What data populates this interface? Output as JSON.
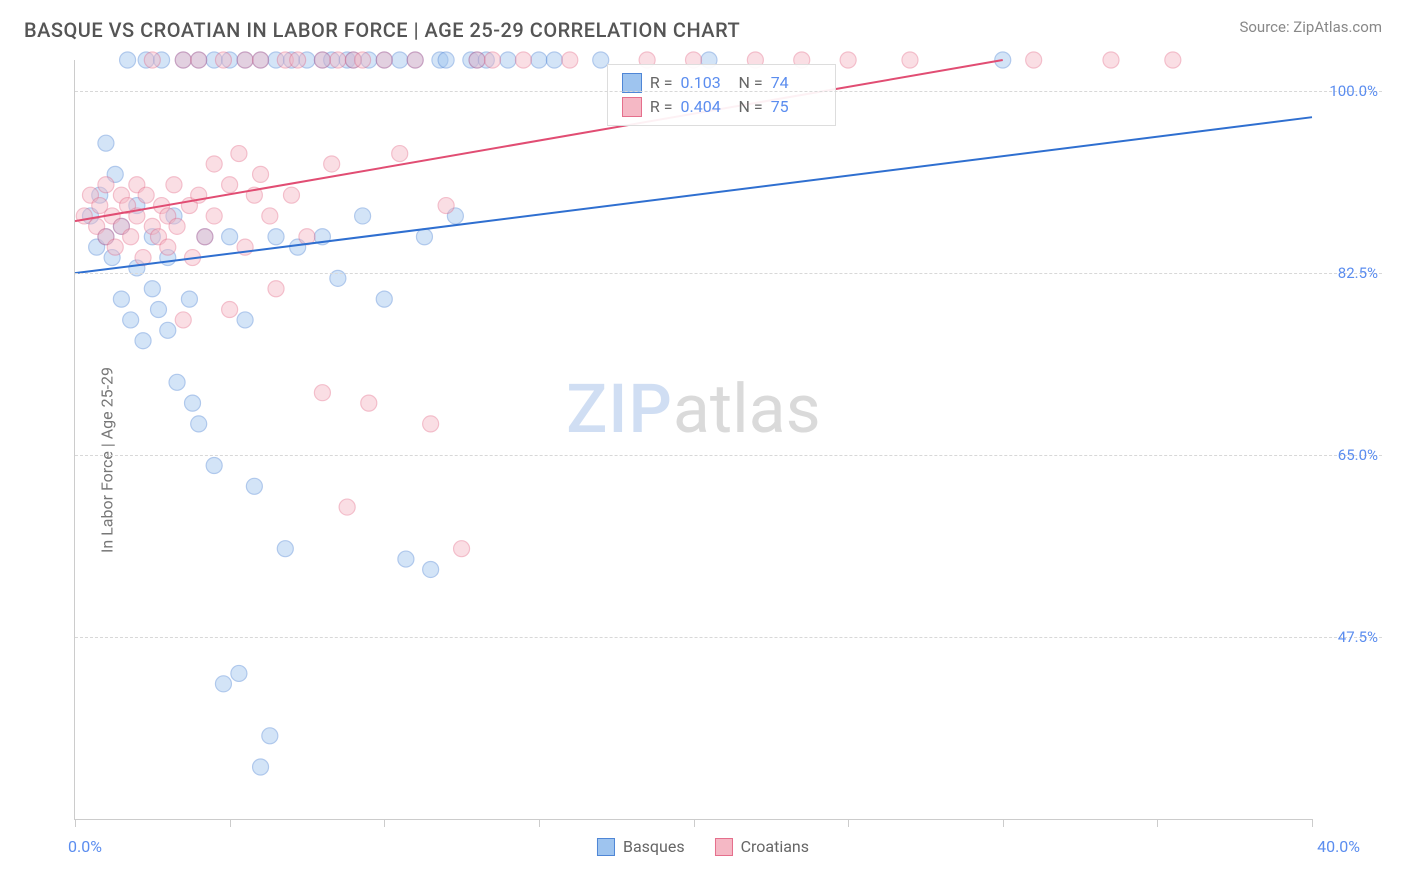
{
  "header": {
    "title": "BASQUE VS CROATIAN IN LABOR FORCE | AGE 25-29 CORRELATION CHART",
    "source": "Source: ZipAtlas.com"
  },
  "chart": {
    "type": "scatter",
    "ylabel": "In Labor Force | Age 25-29",
    "xlim": [
      0,
      40
    ],
    "ylim": [
      30,
      103
    ],
    "x_tick_positions": [
      0,
      5,
      10,
      15,
      20,
      25,
      30,
      35,
      40
    ],
    "y_gridlines": [
      47.5,
      65.0,
      82.5,
      100.0
    ],
    "y_tick_labels": [
      "47.5%",
      "65.0%",
      "82.5%",
      "100.0%"
    ],
    "x_min_label": "0.0%",
    "x_max_label": "40.0%",
    "background_color": "#ffffff",
    "grid_color": "#d8d8d8",
    "axis_color": "#cccccc",
    "text_color": "#666666",
    "value_color": "#5b8def",
    "marker_radius": 8,
    "marker_opacity": 0.45,
    "line_width": 2,
    "stats_box": {
      "left_pct": 43,
      "top_pct": 0.5
    },
    "series": [
      {
        "name": "Basques",
        "color_fill": "#9ec4ef",
        "color_stroke": "#4f86d6",
        "line_color": "#2f6fd0",
        "r_value": "0.103",
        "n_value": "74",
        "trend": {
          "x1": 0,
          "y1": 82.5,
          "x2": 40,
          "y2": 97.5
        },
        "points": [
          [
            0.5,
            88
          ],
          [
            0.7,
            85
          ],
          [
            0.8,
            90
          ],
          [
            1,
            86
          ],
          [
            1,
            95
          ],
          [
            1.2,
            84
          ],
          [
            1.3,
            92
          ],
          [
            1.5,
            80
          ],
          [
            1.5,
            87
          ],
          [
            1.7,
            103
          ],
          [
            1.8,
            78
          ],
          [
            2,
            83
          ],
          [
            2,
            89
          ],
          [
            2.2,
            76
          ],
          [
            2.3,
            103
          ],
          [
            2.5,
            81
          ],
          [
            2.5,
            86
          ],
          [
            2.7,
            79
          ],
          [
            2.8,
            103
          ],
          [
            3,
            77
          ],
          [
            3,
            84
          ],
          [
            3.2,
            88
          ],
          [
            3.3,
            72
          ],
          [
            3.5,
            103
          ],
          [
            3.7,
            80
          ],
          [
            3.8,
            70
          ],
          [
            4,
            68
          ],
          [
            4,
            103
          ],
          [
            4.2,
            86
          ],
          [
            4.5,
            64
          ],
          [
            4.5,
            103
          ],
          [
            4.8,
            43
          ],
          [
            5,
            103
          ],
          [
            5,
            86
          ],
          [
            5.3,
            44
          ],
          [
            5.5,
            78
          ],
          [
            5.5,
            103
          ],
          [
            5.8,
            62
          ],
          [
            6,
            103
          ],
          [
            6,
            35
          ],
          [
            6.3,
            38
          ],
          [
            6.5,
            86
          ],
          [
            6.5,
            103
          ],
          [
            6.8,
            56
          ],
          [
            7,
            103
          ],
          [
            7.2,
            85
          ],
          [
            7.5,
            103
          ],
          [
            8,
            103
          ],
          [
            8,
            86
          ],
          [
            8.3,
            103
          ],
          [
            8.5,
            82
          ],
          [
            8.8,
            103
          ],
          [
            9,
            103
          ],
          [
            9.3,
            88
          ],
          [
            9.5,
            103
          ],
          [
            10,
            103
          ],
          [
            10,
            80
          ],
          [
            10.5,
            103
          ],
          [
            10.7,
            55
          ],
          [
            11,
            103
          ],
          [
            11.3,
            86
          ],
          [
            11.5,
            54
          ],
          [
            11.8,
            103
          ],
          [
            12,
            103
          ],
          [
            12.3,
            88
          ],
          [
            12.8,
            103
          ],
          [
            13,
            103
          ],
          [
            13.3,
            103
          ],
          [
            14,
            103
          ],
          [
            15,
            103
          ],
          [
            15.5,
            103
          ],
          [
            17,
            103
          ],
          [
            20.5,
            103
          ],
          [
            30,
            103
          ]
        ]
      },
      {
        "name": "Croatians",
        "color_fill": "#f5b8c5",
        "color_stroke": "#e56f8c",
        "line_color": "#e14d73",
        "r_value": "0.404",
        "n_value": "75",
        "trend": {
          "x1": 0,
          "y1": 87.5,
          "x2": 30,
          "y2": 103
        },
        "points": [
          [
            0.3,
            88
          ],
          [
            0.5,
            90
          ],
          [
            0.7,
            87
          ],
          [
            0.8,
            89
          ],
          [
            1,
            86
          ],
          [
            1,
            91
          ],
          [
            1.2,
            88
          ],
          [
            1.3,
            85
          ],
          [
            1.5,
            90
          ],
          [
            1.5,
            87
          ],
          [
            1.7,
            89
          ],
          [
            1.8,
            86
          ],
          [
            2,
            88
          ],
          [
            2,
            91
          ],
          [
            2.2,
            84
          ],
          [
            2.3,
            90
          ],
          [
            2.5,
            87
          ],
          [
            2.5,
            103
          ],
          [
            2.7,
            86
          ],
          [
            2.8,
            89
          ],
          [
            3,
            88
          ],
          [
            3,
            85
          ],
          [
            3.2,
            91
          ],
          [
            3.3,
            87
          ],
          [
            3.5,
            78
          ],
          [
            3.5,
            103
          ],
          [
            3.7,
            89
          ],
          [
            3.8,
            84
          ],
          [
            4,
            90
          ],
          [
            4,
            103
          ],
          [
            4.2,
            86
          ],
          [
            4.5,
            93
          ],
          [
            4.5,
            88
          ],
          [
            4.8,
            103
          ],
          [
            5,
            91
          ],
          [
            5,
            79
          ],
          [
            5.3,
            94
          ],
          [
            5.5,
            103
          ],
          [
            5.5,
            85
          ],
          [
            5.8,
            90
          ],
          [
            6,
            103
          ],
          [
            6,
            92
          ],
          [
            6.3,
            88
          ],
          [
            6.5,
            81
          ],
          [
            6.8,
            103
          ],
          [
            7,
            90
          ],
          [
            7.2,
            103
          ],
          [
            7.5,
            86
          ],
          [
            8,
            103
          ],
          [
            8,
            71
          ],
          [
            8.3,
            93
          ],
          [
            8.5,
            103
          ],
          [
            8.8,
            60
          ],
          [
            9,
            103
          ],
          [
            9.3,
            103
          ],
          [
            9.5,
            70
          ],
          [
            10,
            103
          ],
          [
            10.5,
            94
          ],
          [
            11,
            103
          ],
          [
            11.5,
            68
          ],
          [
            12,
            89
          ],
          [
            12.5,
            56
          ],
          [
            13,
            103
          ],
          [
            13.5,
            103
          ],
          [
            14.5,
            103
          ],
          [
            16,
            103
          ],
          [
            18.5,
            103
          ],
          [
            20,
            103
          ],
          [
            22,
            103
          ],
          [
            23.5,
            103
          ],
          [
            25,
            103
          ],
          [
            27,
            103
          ],
          [
            31,
            103
          ],
          [
            33.5,
            103
          ],
          [
            35.5,
            103
          ]
        ]
      }
    ],
    "legend": {
      "items": [
        "Basques",
        "Croatians"
      ]
    },
    "watermark": {
      "part1": "ZIP",
      "part2": "atlas"
    }
  }
}
